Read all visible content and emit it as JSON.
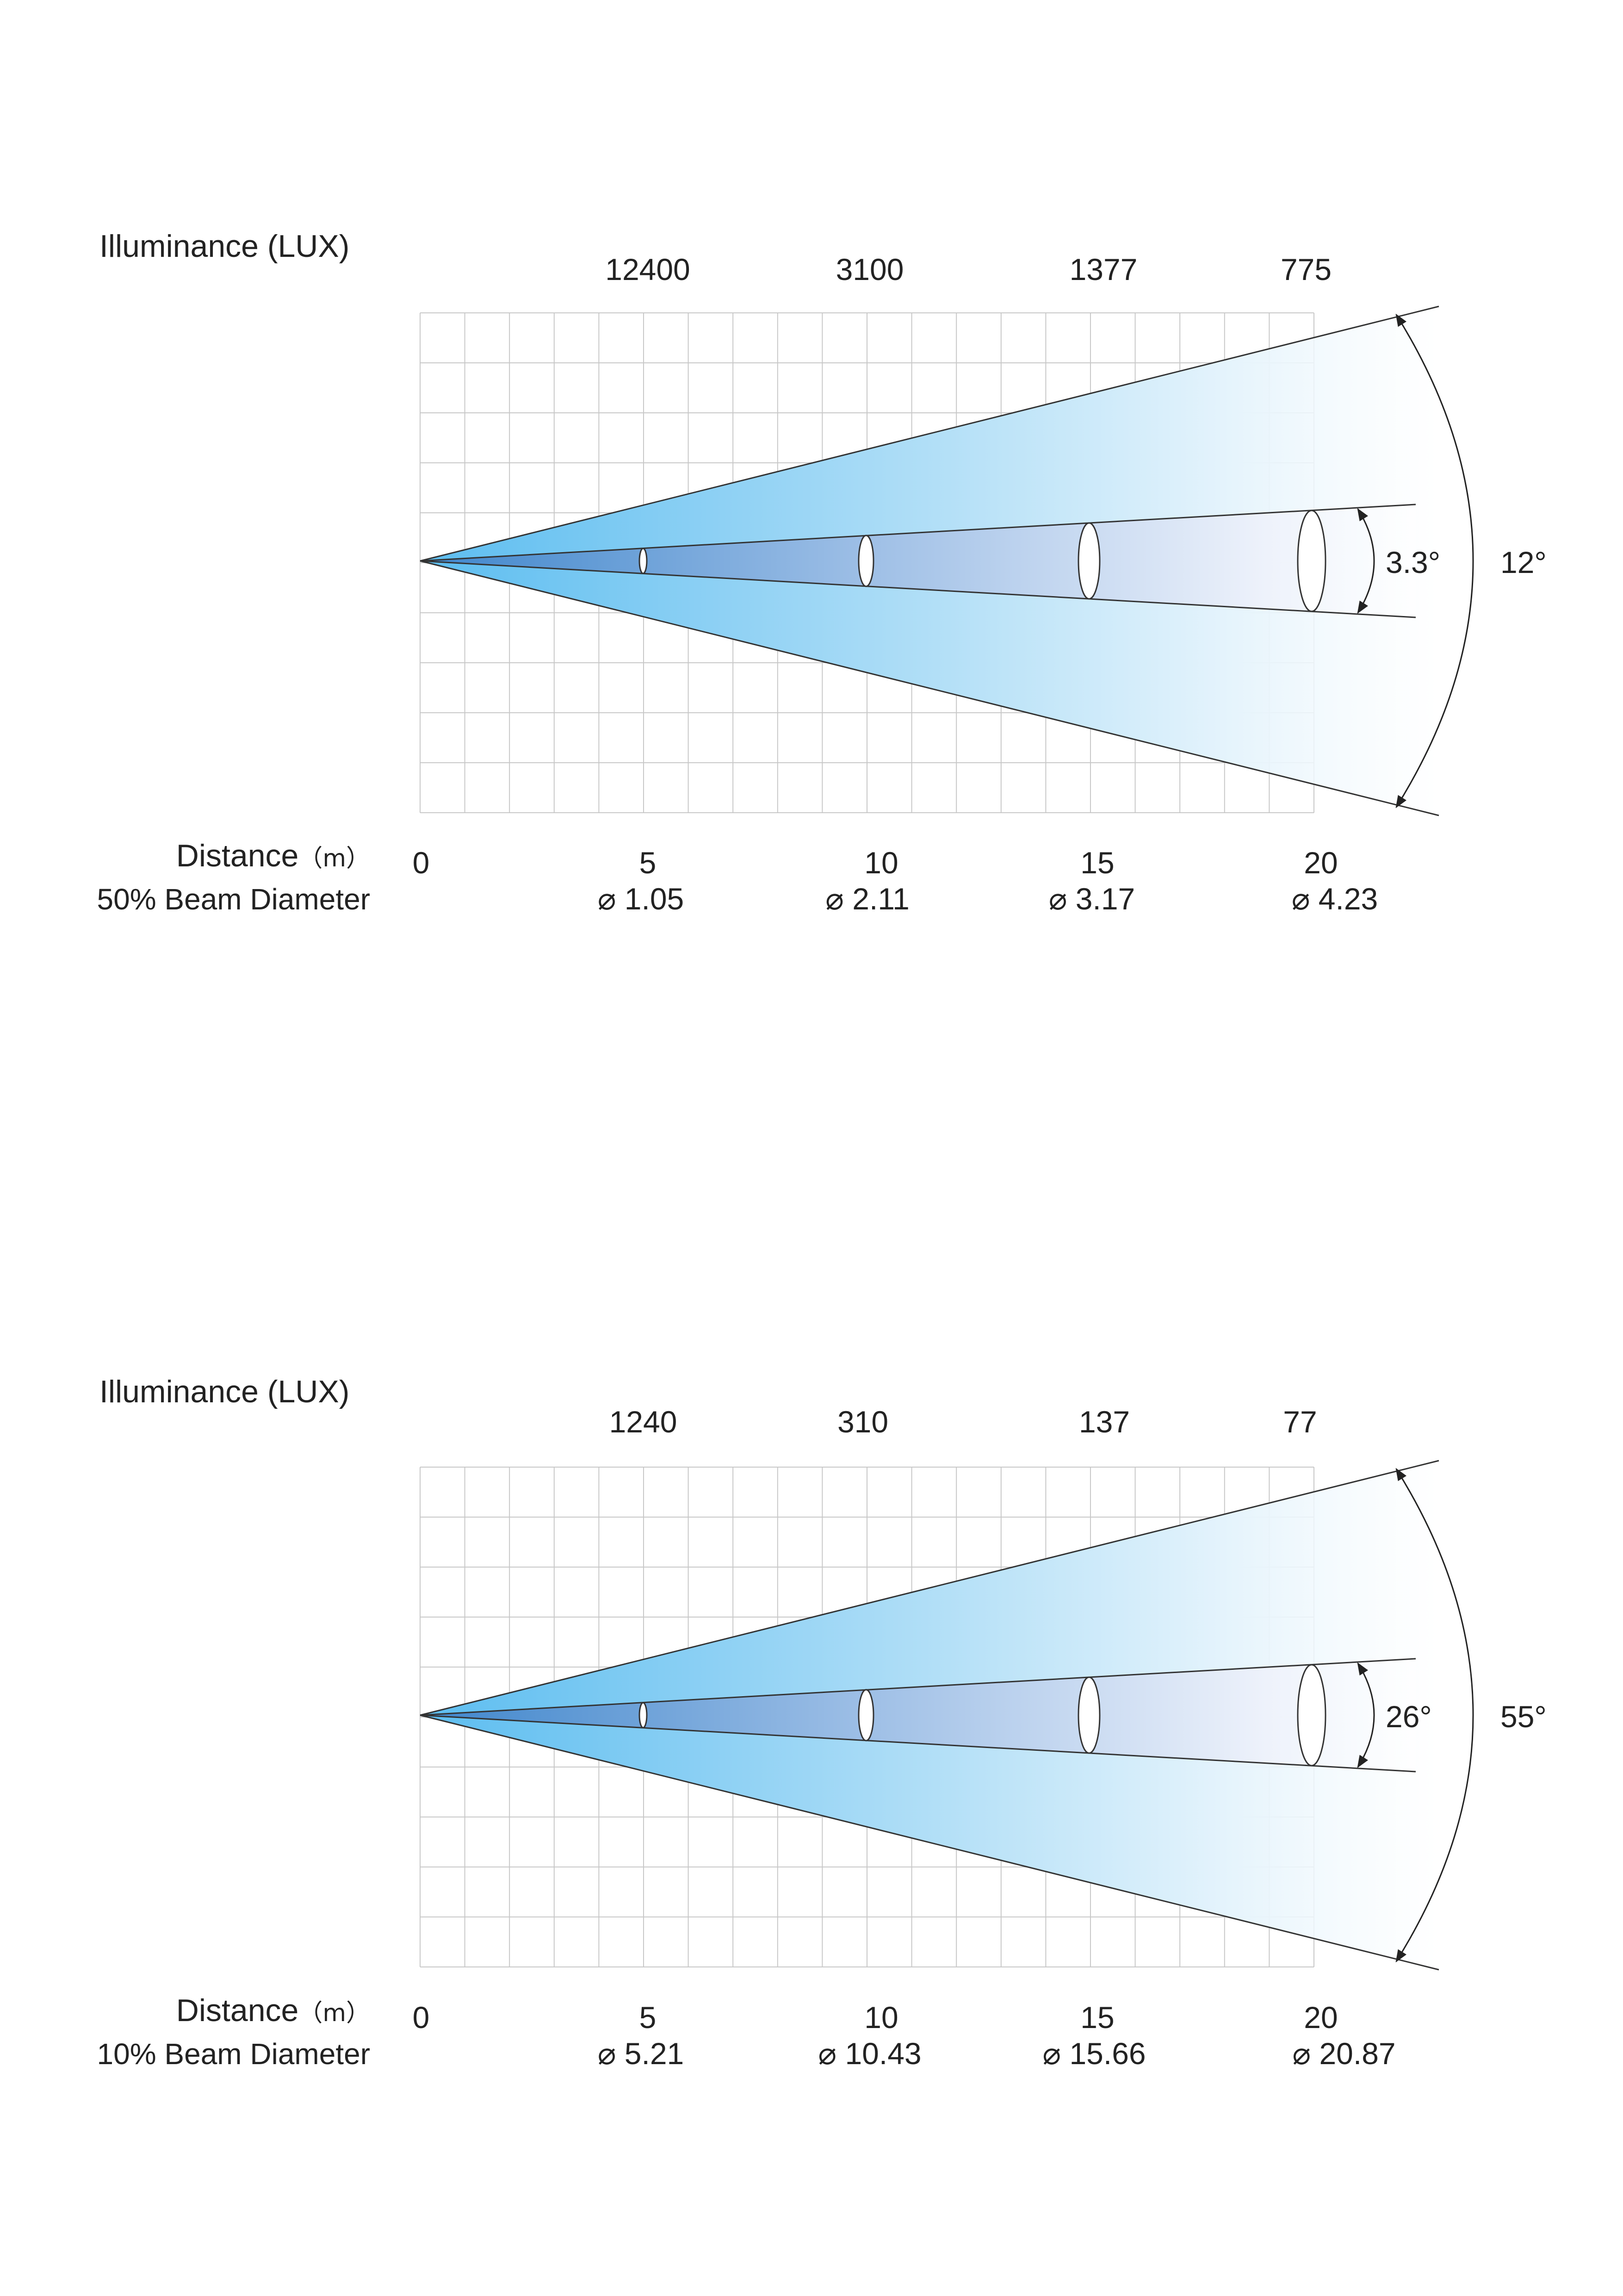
{
  "diagrams": [
    {
      "illuminance_label": "Illuminance (LUX)",
      "lux_values": [
        "12400",
        "3100",
        "1377",
        "775"
      ],
      "distance_label": "Distance",
      "distance_unit": "（m）",
      "distance_zero": "0",
      "distance_ticks": [
        "5",
        "10",
        "15",
        "20"
      ],
      "beam_label": "50% Beam Diameter",
      "beam_diameters": [
        "⌀ 1.05",
        "⌀ 2.11",
        "⌀ 3.17",
        "⌀ 4.23"
      ],
      "inner_angle": "3.3°",
      "outer_angle": "12°"
    },
    {
      "illuminance_label": "Illuminance (LUX)",
      "lux_values": [
        "1240",
        "310",
        "137",
        "77"
      ],
      "distance_label": "Distance",
      "distance_unit": "（m）",
      "distance_zero": "0",
      "distance_ticks": [
        "5",
        "10",
        "15",
        "20"
      ],
      "beam_label": "10% Beam Diameter",
      "beam_diameters": [
        "⌀ 5.21",
        "⌀ 10.43",
        "⌀ 15.66",
        "⌀ 20.87"
      ],
      "inner_angle": "26°",
      "outer_angle": "55°"
    }
  ],
  "colors": {
    "beam_outer_start": "#6cc4f0",
    "beam_inner_start": "#4a8fd0",
    "grid": "#c8c8c8",
    "line": "#333333"
  }
}
